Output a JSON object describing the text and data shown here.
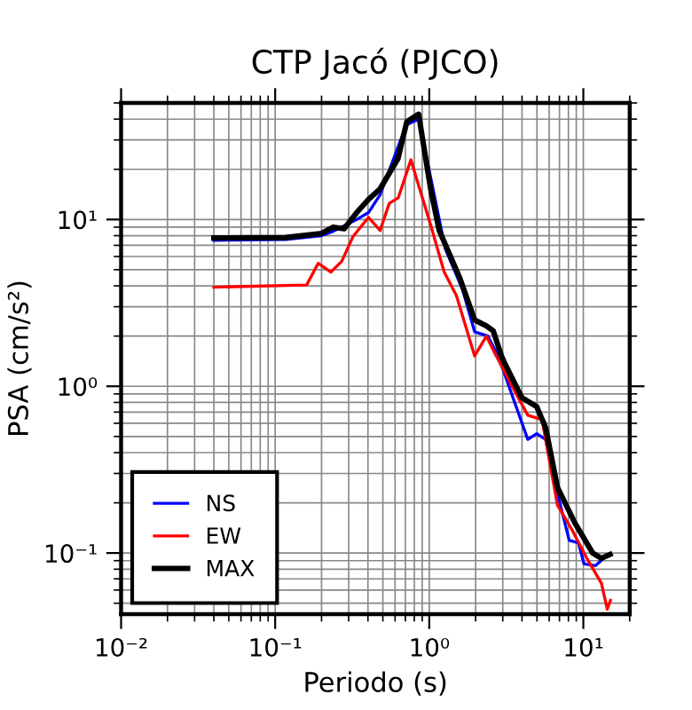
{
  "chart_data": {
    "type": "line",
    "title": "CTP Jacó (PJCO)",
    "xlabel": "Periodo (s)",
    "ylabel": "PSA (cm/s²)",
    "log": "xy",
    "grid": true,
    "legend": "bottom left",
    "line_style": "solid",
    "xlim": [
      0.01,
      20
    ],
    "ylim": [
      0.043,
      50
    ],
    "xticks": [
      {
        "value": 0.01,
        "label": "10⁻²"
      },
      {
        "value": 0.1,
        "label": "10⁻¹"
      },
      {
        "value": 1,
        "label": "10⁰"
      },
      {
        "value": 10,
        "label": "10¹"
      }
    ],
    "yticks": [
      {
        "value": 0.1,
        "label": "10⁻¹"
      },
      {
        "value": 1,
        "label": "10⁰"
      },
      {
        "value": 10,
        "label": "10¹"
      }
    ],
    "series": [
      {
        "name": "NS",
        "color": "#0000ff",
        "x": [
          0.04,
          0.117,
          0.2,
          0.238,
          0.338,
          0.403,
          0.48,
          0.67,
          0.715,
          0.853,
          1.27,
          1.65,
          1.97,
          2.4,
          2.8,
          4.36,
          4.98,
          5.69,
          6.79,
          8.1,
          9.3,
          10.1,
          12.0,
          14.3
        ],
        "values": [
          7.5,
          7.6,
          8.0,
          8.5,
          10.0,
          11.0,
          14.1,
          32,
          37,
          40,
          6.7,
          3.77,
          2.12,
          2.0,
          1.52,
          0.48,
          0.52,
          0.48,
          0.228,
          0.119,
          0.115,
          0.086,
          0.084,
          0.097
        ]
      },
      {
        "name": "EW",
        "color": "#ff0000",
        "x": [
          0.04,
          0.16,
          0.19,
          0.23,
          0.27,
          0.32,
          0.403,
          0.48,
          0.55,
          0.63,
          0.76,
          0.853,
          1.02,
          1.25,
          1.5,
          1.97,
          2.35,
          2.6,
          3.6,
          4.36,
          5.4,
          6.79,
          8.4,
          10.6,
          13.1,
          14.3,
          15
        ],
        "values": [
          3.93,
          4.05,
          5.46,
          4.84,
          5.6,
          7.9,
          10.3,
          8.6,
          12.5,
          13.5,
          22.8,
          16,
          9.3,
          4.84,
          3.5,
          1.52,
          2.0,
          1.65,
          0.93,
          0.67,
          0.63,
          0.194,
          0.139,
          0.092,
          0.066,
          0.046,
          0.052
        ]
      },
      {
        "name": "MAX",
        "color": "#000000",
        "x": [
          0.04,
          0.117,
          0.2,
          0.238,
          0.28,
          0.338,
          0.403,
          0.48,
          0.627,
          0.715,
          0.853,
          1.02,
          1.16,
          1.58,
          1.97,
          2.35,
          2.6,
          2.94,
          3.06,
          3.99,
          4.98,
          5.69,
          6.79,
          8.83,
          11.5,
          13.1,
          14.9
        ],
        "values": [
          7.75,
          7.8,
          8.25,
          9.0,
          8.8,
          11.0,
          13.2,
          15.3,
          23.2,
          38.6,
          42.8,
          15.3,
          8.6,
          4.45,
          2.5,
          2.3,
          2.15,
          1.52,
          1.4,
          0.855,
          0.755,
          0.566,
          0.248,
          0.151,
          0.1,
          0.093,
          0.098
        ]
      }
    ]
  }
}
